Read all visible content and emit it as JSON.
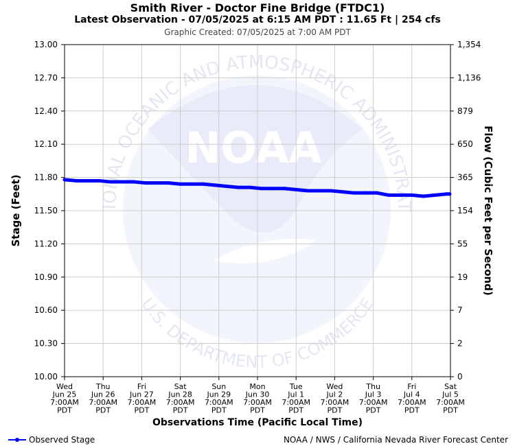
{
  "header": {
    "title": "Smith River - Doctor Fine Bridge (FTDC1)",
    "subtitle": "Latest Observation - 07/05/2025 at 6:15 AM PDT : 11.65 Ft | 254 cfs",
    "created": "Graphic Created: 07/05/2025 at 7:00 AM PDT"
  },
  "footer": {
    "legend_label": "Observed Stage",
    "credit": "NOAA / NWS / California Nevada River Forecast Center"
  },
  "watermark": {
    "outer_text": "NATIONAL OCEANIC AND ATMOSPHERIC ADMINISTRATION",
    "bottom_text": "U.S. DEPARTMENT OF COMMERCE",
    "center_text": "NOAA"
  },
  "chart_data": {
    "type": "line",
    "xlabel": "Observations Time (Pacific Local Time)",
    "ylabel": "Stage (Feet)",
    "y2label": "Flow (Cubic Feet per Second)",
    "ylim": [
      10.0,
      13.0
    ],
    "xlim": [
      0,
      10
    ],
    "grid": true,
    "legend_position": "bottom-left",
    "series_color": "#0000ff",
    "y_ticks": [
      "10.00",
      "10.30",
      "10.60",
      "10.90",
      "11.20",
      "11.50",
      "11.80",
      "12.10",
      "12.40",
      "12.70",
      "13.00"
    ],
    "y2_ticks": [
      "0",
      "2",
      "7",
      "19",
      "55",
      "154",
      "365",
      "650",
      "879",
      "1,136",
      "1,354"
    ],
    "x_ticks": [
      [
        "Wed",
        "Jun 25",
        "7:00AM",
        "PDT"
      ],
      [
        "Thu",
        "Jun 26",
        "7:00AM",
        "PDT"
      ],
      [
        "Fri",
        "Jun 27",
        "7:00AM",
        "PDT"
      ],
      [
        "Sat",
        "Jun 28",
        "7:00AM",
        "PDT"
      ],
      [
        "Sun",
        "Jun 29",
        "7:00AM",
        "PDT"
      ],
      [
        "Mon",
        "Jun 30",
        "7:00AM",
        "PDT"
      ],
      [
        "Tue",
        "Jul 1",
        "7:00AM",
        "PDT"
      ],
      [
        "Wed",
        "Jul 2",
        "7:00AM",
        "PDT"
      ],
      [
        "Thu",
        "Jul 3",
        "7:00AM",
        "PDT"
      ],
      [
        "Fri",
        "Jul 4",
        "7:00AM",
        "PDT"
      ],
      [
        "Sat",
        "Jul 5",
        "7:00AM",
        "PDT"
      ]
    ],
    "series": [
      {
        "x": [
          0.0,
          0.3,
          0.6,
          0.9,
          1.2,
          1.5,
          1.8,
          2.1,
          2.4,
          2.7,
          3.0,
          3.3,
          3.6,
          3.9,
          4.2,
          4.5,
          4.8,
          5.1,
          5.4,
          5.7,
          6.0,
          6.3,
          6.6,
          6.9,
          7.2,
          7.5,
          7.8,
          8.1,
          8.4,
          8.7,
          9.0,
          9.3,
          9.6,
          9.9,
          9.98
        ],
        "y": [
          11.78,
          11.77,
          11.77,
          11.77,
          11.76,
          11.76,
          11.76,
          11.75,
          11.75,
          11.75,
          11.74,
          11.74,
          11.74,
          11.73,
          11.72,
          11.71,
          11.71,
          11.7,
          11.7,
          11.7,
          11.69,
          11.68,
          11.68,
          11.68,
          11.67,
          11.66,
          11.66,
          11.66,
          11.64,
          11.64,
          11.64,
          11.63,
          11.64,
          11.65,
          11.65
        ]
      }
    ]
  }
}
